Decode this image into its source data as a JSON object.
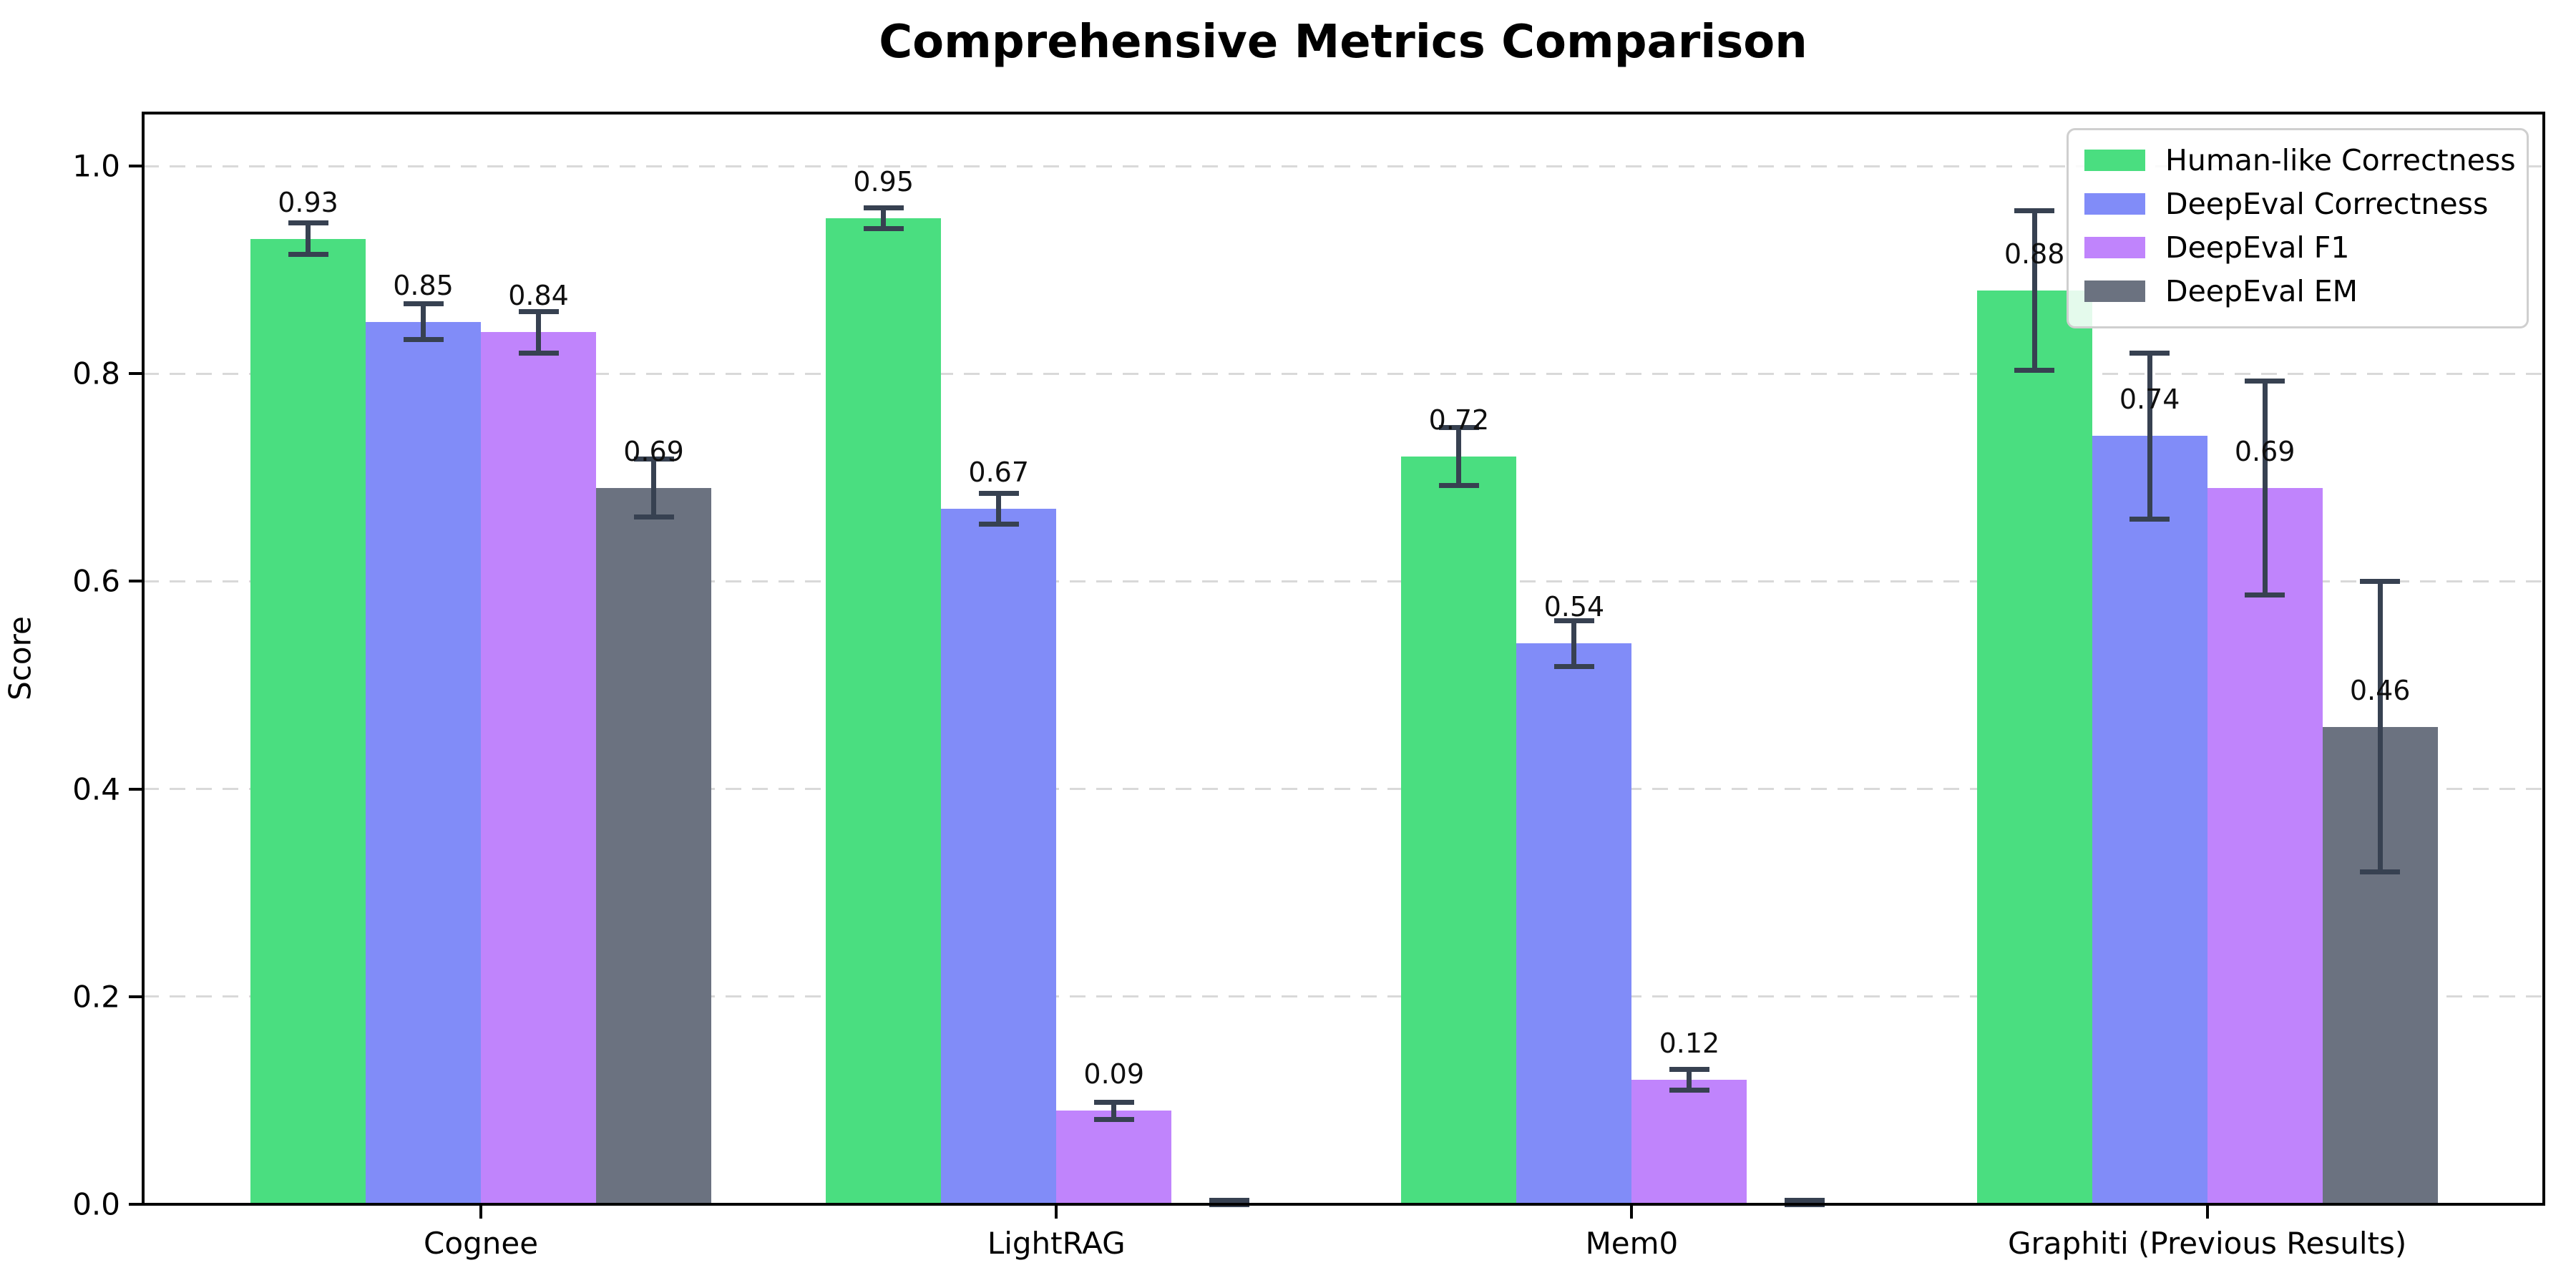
{
  "chart_data": {
    "type": "bar",
    "title": "Comprehensive Metrics Comparison",
    "xlabel": "",
    "ylabel": "Score",
    "categories": [
      "Cognee",
      "LightRAG",
      "Mem0",
      "Graphiti (Previous Results)"
    ],
    "series": [
      {
        "name": "Human-like Correctness",
        "color": "#4ade80",
        "values": [
          0.93,
          0.95,
          0.72,
          0.88
        ],
        "errors": [
          0.015,
          0.01,
          0.028,
          0.077
        ]
      },
      {
        "name": "DeepEval Correctness",
        "color": "#818cf8",
        "values": [
          0.85,
          0.67,
          0.54,
          0.74
        ],
        "errors": [
          0.017,
          0.015,
          0.022,
          0.08
        ]
      },
      {
        "name": "DeepEval F1",
        "color": "#c084fc",
        "values": [
          0.84,
          0.09,
          0.12,
          0.69
        ],
        "errors": [
          0.02,
          0.008,
          0.01,
          0.103
        ]
      },
      {
        "name": "DeepEval EM",
        "color": "#6b7280",
        "values": [
          0.69,
          0.0,
          0.0,
          0.46
        ],
        "errors": [
          0.028,
          0.004,
          0.004,
          0.14
        ]
      }
    ],
    "bar_labels_format": "2-decimals",
    "bar_labels_hidden_for_zero": true,
    "yticks": [
      "0.0",
      "0.2",
      "0.4",
      "0.6",
      "0.8",
      "1.0"
    ],
    "ytick_values": [
      0.0,
      0.2,
      0.4,
      0.6,
      0.8,
      1.0
    ],
    "ylim": [
      0,
      1.051
    ],
    "grid": "horizontal-dashed",
    "grid_color": "#d9d9d9",
    "error_bar_color": "#374151",
    "spine_color": "#000000",
    "background_color": "#ffffff",
    "legend_position": "upper-right"
  }
}
